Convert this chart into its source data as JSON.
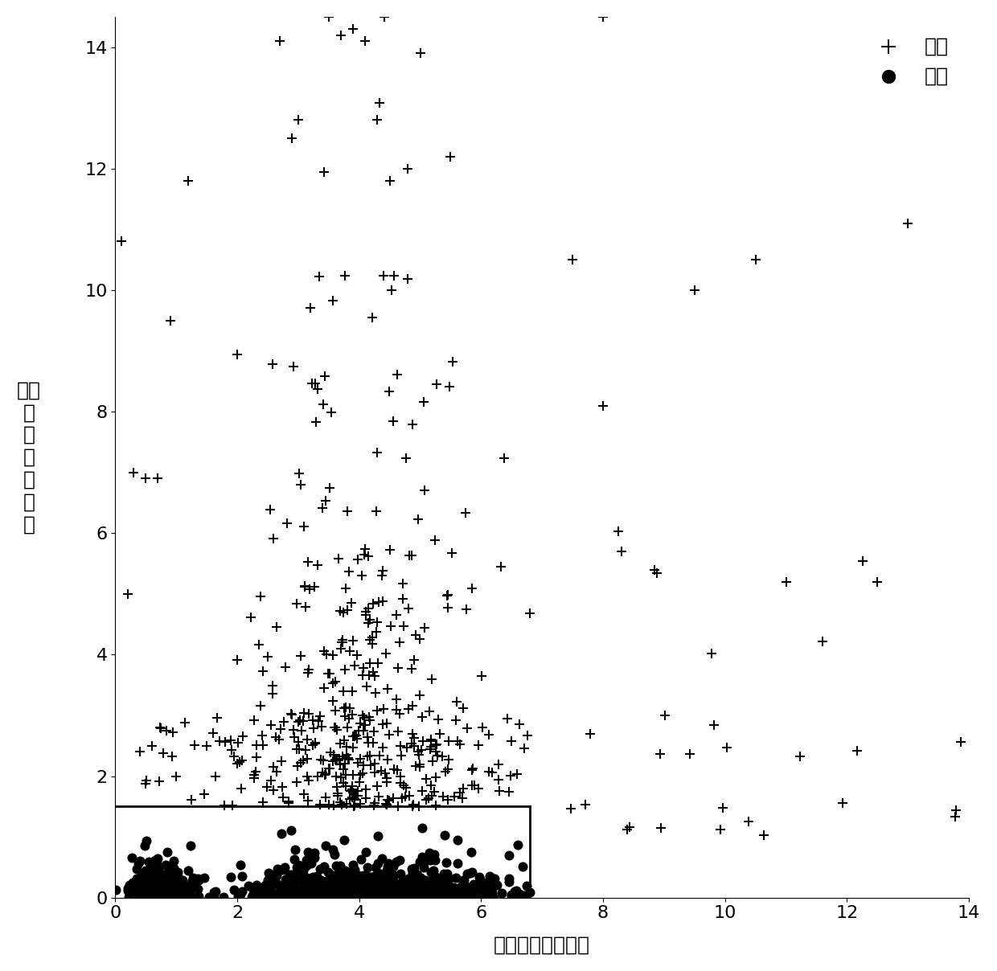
{
  "title": "",
  "xlabel": "长度方向上的方差",
  "ylabel": "宽度\n方\n向\n上\n的\n方\n差",
  "xlim": [
    0,
    14
  ],
  "ylim": [
    0,
    14.5
  ],
  "xticks": [
    0,
    2,
    4,
    6,
    8,
    10,
    12,
    14
  ],
  "yticks": [
    0,
    2,
    4,
    6,
    8,
    10,
    12,
    14
  ],
  "threshold_y": 1.5,
  "threshold_x": 6.8,
  "decision_line_x_start": 0,
  "legend_labels": [
    "坏板",
    "好板"
  ],
  "bad_marker": "+",
  "good_marker": "o",
  "bad_color": "black",
  "good_color": "black",
  "bad_markersize": 7,
  "good_markersize": 7,
  "line_color": "black",
  "line_width": 2.0,
  "font_size": 18,
  "legend_fontsize": 18,
  "tick_fontsize": 16,
  "ylabel_fontsize": 18,
  "xlabel_fontsize": 18,
  "seed": 42
}
